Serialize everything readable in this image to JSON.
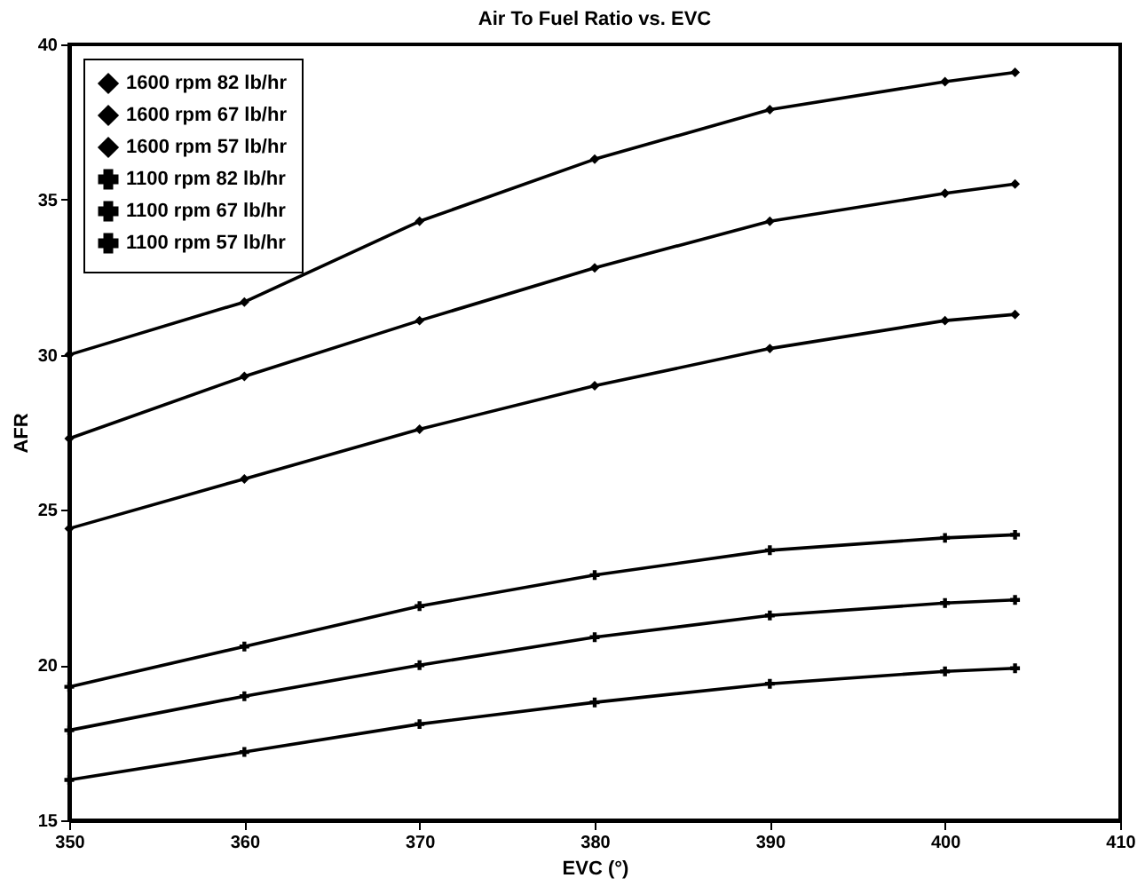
{
  "chart_data": {
    "type": "line",
    "title": "Air To Fuel Ratio vs. EVC",
    "xlabel": "EVC (°)",
    "ylabel": "AFR",
    "x": [
      350,
      360,
      370,
      380,
      390,
      400,
      404
    ],
    "xlim": [
      350,
      410
    ],
    "xticks": [
      350,
      360,
      370,
      380,
      390,
      400,
      410
    ],
    "ylim": [
      15,
      40
    ],
    "yticks": [
      15,
      20,
      25,
      30,
      35,
      40
    ],
    "grid": false,
    "legend": "top left",
    "line_style": "solid",
    "series": [
      {
        "name": "1600 rpm 82 lb/hr",
        "color": "#000000",
        "marker": "diamond",
        "values": [
          30.0,
          31.7,
          34.3,
          36.3,
          37.9,
          38.8,
          39.1
        ]
      },
      {
        "name": "1600 rpm 67 lb/hr",
        "color": "#000000",
        "marker": "diamond",
        "values": [
          27.3,
          29.3,
          31.1,
          32.8,
          34.3,
          35.2,
          35.5
        ]
      },
      {
        "name": "1600 rpm 57 lb/hr",
        "color": "#000000",
        "marker": "diamond",
        "values": [
          24.4,
          26.0,
          27.6,
          29.0,
          30.2,
          31.1,
          31.3
        ]
      },
      {
        "name": "1100 rpm 82 lb/hr",
        "color": "#000000",
        "marker": "cross",
        "values": [
          19.3,
          20.6,
          21.9,
          22.9,
          23.7,
          24.1,
          24.2
        ]
      },
      {
        "name": "1100 rpm 67 lb/hr",
        "color": "#000000",
        "marker": "cross",
        "values": [
          17.9,
          19.0,
          20.0,
          20.9,
          21.6,
          22.0,
          22.1
        ]
      },
      {
        "name": "1100 rpm 57 lb/hr",
        "color": "#000000",
        "marker": "cross",
        "values": [
          16.3,
          17.2,
          18.1,
          18.8,
          19.4,
          19.8,
          19.9
        ]
      }
    ]
  }
}
